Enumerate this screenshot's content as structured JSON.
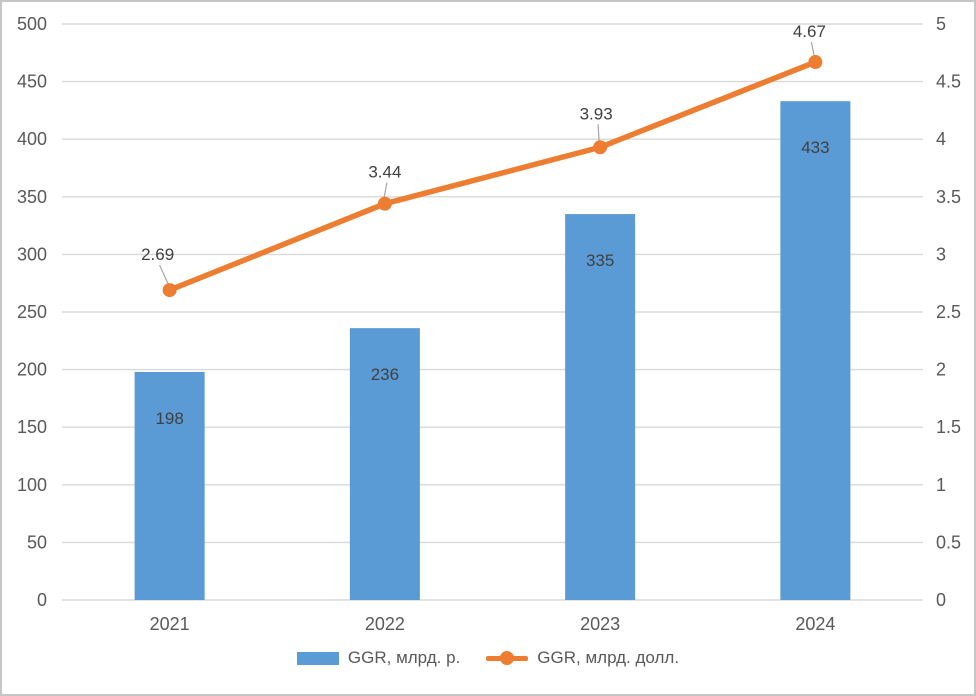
{
  "chart_data": {
    "type": "combo",
    "categories": [
      "2021",
      "2022",
      "2023",
      "2024"
    ],
    "series": [
      {
        "name": "GGR, млрд. р.",
        "type": "bar",
        "axis": "left",
        "values": [
          198,
          236,
          335,
          433
        ],
        "labels": [
          "198",
          "236",
          "335",
          "433"
        ],
        "color": "#5B9BD5"
      },
      {
        "name": "GGR, млрд. долл.",
        "type": "line",
        "axis": "right",
        "values": [
          2.69,
          3.44,
          3.93,
          4.67
        ],
        "labels": [
          "2.69",
          "3.44",
          "3.93",
          "4.67"
        ],
        "color": "#ED7D31"
      }
    ],
    "left_axis": {
      "min": 0,
      "max": 500,
      "step": 50,
      "ticks": [
        "0",
        "50",
        "100",
        "150",
        "200",
        "250",
        "300",
        "350",
        "400",
        "450",
        "500"
      ]
    },
    "right_axis": {
      "min": 0,
      "max": 5,
      "step": 0.5,
      "ticks": [
        "0",
        "0.5",
        "1",
        "1.5",
        "2",
        "2.5",
        "3",
        "3.5",
        "4",
        "4.5",
        "5"
      ]
    },
    "title": "",
    "xlabel": "",
    "ylabel": "",
    "grid": true,
    "legend_position": "bottom",
    "data_labels": true
  },
  "colors": {
    "bar": "#5B9BD5",
    "line": "#ED7D31",
    "gridline": "#D9D9D9",
    "axis_text": "#595959",
    "data_label": "#404040",
    "leader": "#A6A6A6",
    "frame_border": "#C6C6C6",
    "background": "#FFFFFF"
  }
}
